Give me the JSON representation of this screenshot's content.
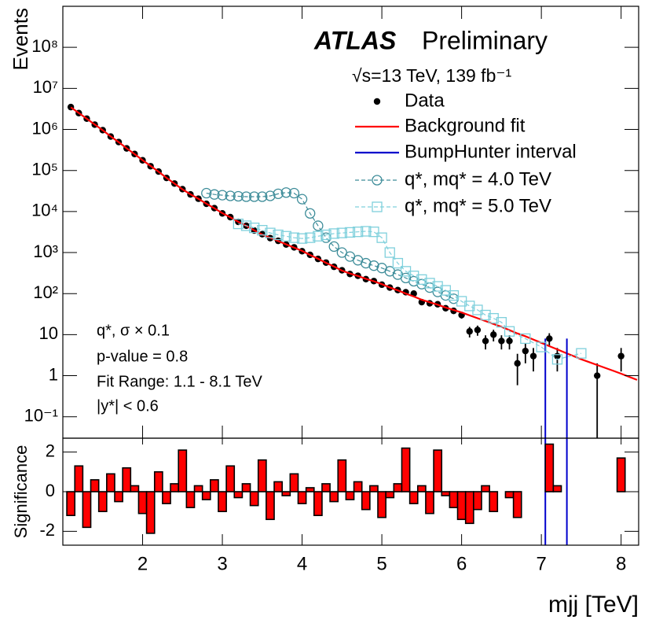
{
  "chart_data": [
    {
      "type": "line",
      "log_y": true,
      "ylabel": "Events",
      "ylim": [
        0.03,
        1000000000
      ],
      "yticks": [
        {
          "value": 0.1,
          "label": "10⁻¹"
        },
        1,
        10,
        {
          "value": 100,
          "label": "10²"
        },
        {
          "value": 1000,
          "label": "10³"
        },
        {
          "value": 10000,
          "label": "10⁴"
        },
        {
          "value": 100000,
          "label": "10⁵"
        },
        {
          "value": 1000000,
          "label": "10⁶"
        },
        {
          "value": 10000000,
          "label": "10⁷"
        },
        {
          "value": 100000000,
          "label": "10⁸"
        }
      ],
      "annotations": [
        "ATLAS",
        "Preliminary",
        "√s=13 TeV, 139 fb⁻¹",
        "q*,  σ × 0.1",
        "p-value = 0.8",
        "Fit Range: 1.1 - 8.1 TeV",
        "|y*| < 0.6"
      ],
      "legend": "top-right",
      "series": [
        {
          "name": "Data",
          "color": "#000000",
          "marker": "circle",
          "x": [
            1.1,
            1.2,
            1.3,
            1.4,
            1.5,
            1.6,
            1.7,
            1.8,
            1.9,
            2.0,
            2.1,
            2.2,
            2.3,
            2.4,
            2.5,
            2.6,
            2.7,
            2.8,
            2.9,
            3.0,
            3.1,
            3.2,
            3.3,
            3.4,
            3.5,
            3.6,
            3.7,
            3.8,
            3.9,
            4.0,
            4.1,
            4.2,
            4.3,
            4.4,
            4.5,
            4.6,
            4.7,
            4.8,
            4.9,
            5.0,
            5.1,
            5.2,
            5.3,
            5.4,
            5.5,
            5.6,
            5.7,
            5.8,
            5.9,
            6.0,
            6.1,
            6.2,
            6.3,
            6.4,
            6.5,
            6.6,
            6.7,
            6.8,
            6.9,
            7.1,
            7.2,
            7.7,
            8.0
          ],
          "values": [
            3500000,
            2500000,
            1830000,
            1310000,
            960000,
            670000,
            492000,
            345000,
            252000,
            177000,
            127000,
            94000,
            65800,
            48100,
            35100,
            26100,
            20500,
            15400,
            12100,
            9000,
            7300,
            5600,
            4500,
            3440,
            2800,
            2250,
            1930,
            1570,
            1340,
            1080,
            880,
            700,
            570,
            450,
            370,
            300,
            272,
            225,
            202,
            165,
            140,
            122,
            108,
            100,
            62,
            58,
            55,
            44,
            38,
            30,
            12,
            13,
            7,
            10,
            7,
            7,
            2,
            4,
            3,
            8,
            3,
            1,
            3
          ]
        },
        {
          "name": "Background fit",
          "color": "#ff0000",
          "marker": "line",
          "x": [
            1.1,
            1.2,
            1.3,
            1.4,
            1.5,
            1.6,
            1.7,
            1.8,
            1.9,
            2.0,
            2.1,
            2.2,
            2.3,
            2.4,
            2.5,
            2.6,
            2.7,
            2.8,
            2.9,
            3.0,
            3.1,
            3.2,
            3.3,
            3.4,
            3.5,
            3.6,
            3.7,
            3.8,
            3.9,
            4.0,
            4.1,
            4.2,
            4.3,
            4.4,
            4.5,
            4.6,
            4.7,
            4.8,
            4.9,
            5.0,
            5.1,
            5.2,
            5.3,
            5.4,
            5.5,
            5.6,
            5.7,
            5.8,
            5.9,
            6.0,
            6.1,
            6.2,
            6.3,
            6.4,
            6.5,
            6.6,
            6.7,
            6.8,
            6.9,
            7.0,
            7.1,
            7.2,
            7.3,
            7.4,
            7.5,
            7.6,
            7.7,
            7.8,
            7.9,
            8.0,
            8.1,
            8.2
          ],
          "values": [
            3470000,
            2510000,
            1820000,
            1320000,
            955000,
            676000,
            490000,
            347000,
            251000,
            178000,
            129000,
            93300,
            66100,
            47900,
            34700,
            26300,
            20400,
            15500,
            12000,
            9120,
            7240,
            5620,
            4470,
            3470,
            2750,
            2290,
            1910,
            1580,
            1320,
            1100,
            871,
            708,
            562,
            457,
            363,
            309,
            269,
            229,
            200,
            170,
            141,
            120,
            100,
            85.1,
            70.8,
            61.7,
            53.7,
            45.7,
            39.8,
            34.7,
            29.5,
            25.1,
            21.4,
            18.2,
            15.5,
            12.9,
            10.7,
            9.12,
            7.59,
            6.31,
            5.25,
            4.37,
            3.63,
            3.02,
            2.51,
            2.14,
            1.82,
            1.55,
            1.32,
            1.12,
            0.94,
            0.79
          ]
        },
        {
          "name": "BumpHunter interval",
          "color": "#0000cc",
          "marker": "vline",
          "x": [
            7.05,
            7.32
          ],
          "values": [
            8,
            8
          ]
        },
        {
          "name": "q*, mq* = 4.0 TeV",
          "color": "#3d8c99",
          "marker": "open-circle",
          "dashed": true,
          "x": [
            2.8,
            2.9,
            3.0,
            3.1,
            3.2,
            3.3,
            3.4,
            3.5,
            3.6,
            3.7,
            3.8,
            3.9,
            4.0,
            4.1,
            4.2,
            4.3,
            4.4,
            4.5,
            4.6,
            4.7,
            4.8,
            4.9,
            5.0,
            5.1,
            5.2,
            5.3,
            5.4,
            5.5,
            5.6,
            5.7,
            5.8,
            5.9
          ],
          "values": [
            28000,
            26000,
            25000,
            24000,
            23500,
            23000,
            23000,
            23000,
            24000,
            27000,
            29000,
            28000,
            20000,
            9000,
            4500,
            2300,
            1400,
            1000,
            800,
            650,
            550,
            480,
            420,
            350,
            290,
            240,
            200,
            170,
            140,
            110,
            90,
            75
          ]
        },
        {
          "name": "q*, mq* = 5.0 TeV",
          "color": "#7fd0dc",
          "marker": "open-square",
          "dashed": true,
          "x": [
            3.2,
            3.3,
            3.4,
            3.5,
            3.6,
            3.7,
            3.8,
            3.9,
            4.0,
            4.1,
            4.2,
            4.3,
            4.4,
            4.5,
            4.6,
            4.7,
            4.8,
            4.9,
            5.0,
            5.1,
            5.2,
            5.3,
            5.4,
            5.5,
            5.6,
            5.7,
            5.8,
            5.9,
            6.0,
            6.1,
            6.2,
            6.3,
            6.4,
            6.5,
            6.6,
            6.8,
            7.0,
            7.2,
            7.5
          ],
          "values": [
            5000,
            4500,
            4000,
            3500,
            3000,
            2700,
            2500,
            2300,
            2200,
            2300,
            2500,
            2700,
            2900,
            3000,
            3100,
            3200,
            3300,
            3200,
            2300,
            1000,
            550,
            350,
            270,
            220,
            180,
            150,
            120,
            90,
            65,
            50,
            40,
            30,
            25,
            20,
            12,
            8,
            5,
            2.5,
            3.5
          ]
        }
      ]
    },
    {
      "type": "histogram",
      "ylabel": "Significance",
      "xlabel": "mjj [TeV]",
      "color": "#ff0000",
      "xlim": [
        1.0,
        8.22
      ],
      "xticks": [
        2,
        3,
        4,
        5,
        6,
        7,
        8
      ],
      "ylim": [
        -2.7,
        2.7
      ],
      "yticks": [
        -2,
        0,
        2
      ],
      "bins": [
        1.05,
        1.15,
        1.25,
        1.35,
        1.45,
        1.55,
        1.65,
        1.75,
        1.85,
        1.95,
        2.05,
        2.15,
        2.25,
        2.35,
        2.45,
        2.55,
        2.65,
        2.75,
        2.85,
        2.95,
        3.05,
        3.15,
        3.25,
        3.35,
        3.45,
        3.55,
        3.65,
        3.75,
        3.85,
        3.95,
        4.05,
        4.15,
        4.25,
        4.35,
        4.45,
        4.55,
        4.65,
        4.75,
        4.85,
        4.95,
        5.05,
        5.15,
        5.25,
        5.35,
        5.45,
        5.55,
        5.65,
        5.75,
        5.85,
        5.95,
        6.05,
        6.15,
        6.25,
        6.35,
        6.45,
        6.55,
        6.65,
        6.75,
        6.85,
        6.95,
        7.05,
        7.15,
        7.25,
        7.35,
        7.45,
        7.55,
        7.65,
        7.75,
        7.85,
        7.95,
        8.05,
        8.15
      ],
      "values": [
        -1.2,
        1.3,
        -1.8,
        0.6,
        -1.0,
        0.9,
        -0.5,
        1.2,
        0.3,
        -1.1,
        -2.1,
        1.0,
        -0.6,
        0.4,
        2.1,
        -0.8,
        0.3,
        -0.4,
        0.6,
        -1.0,
        1.3,
        -0.3,
        0.4,
        -0.7,
        1.6,
        -1.4,
        0.5,
        -0.2,
        0.9,
        -0.6,
        0.2,
        -1.2,
        0.4,
        -0.5,
        1.6,
        -0.4,
        0.5,
        -0.9,
        0.3,
        -1.3,
        -0.3,
        0.4,
        2.2,
        -0.6,
        0.3,
        -1.1,
        2.1,
        -0.2,
        -0.8,
        -1.4,
        -1.6,
        -0.9,
        0.3,
        -1.0,
        0,
        -0.3,
        -1.3,
        0,
        0,
        0,
        2.4,
        0.3,
        0,
        0,
        0,
        0,
        0,
        0,
        0,
        1.7,
        0
      ]
    }
  ]
}
